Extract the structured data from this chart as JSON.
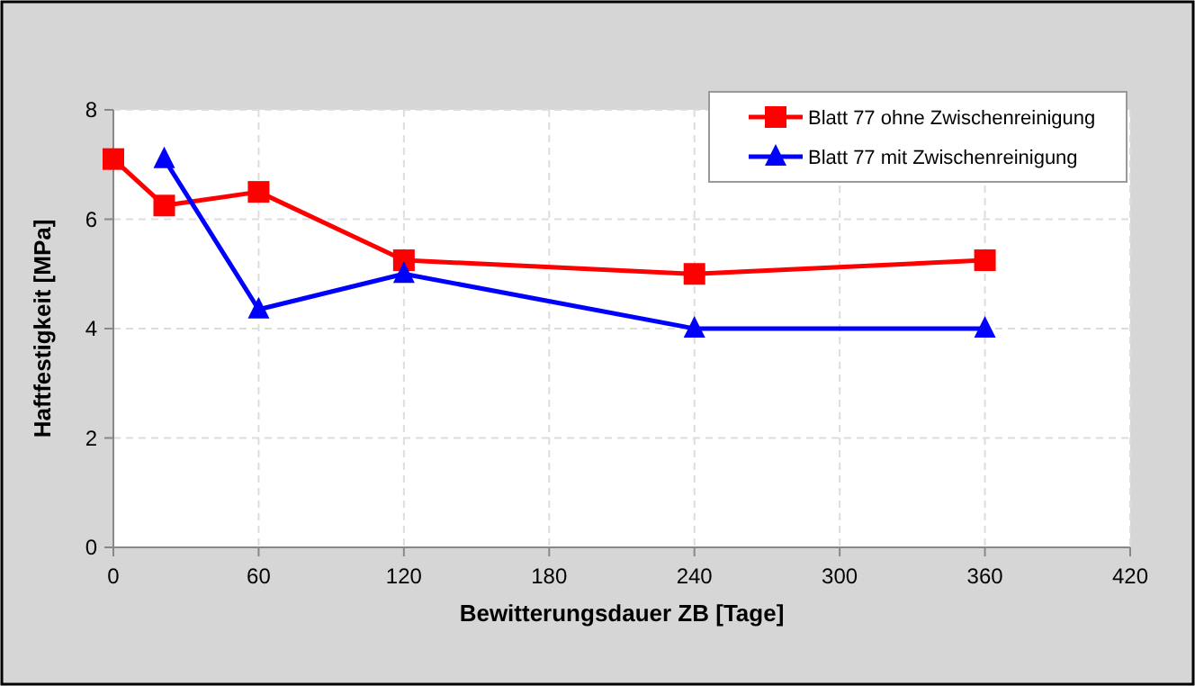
{
  "chart_data": {
    "type": "line",
    "xlabel": "Bewitterungsdauer ZB [Tage]",
    "ylabel": "Haftfestigkeit [MPa]",
    "xlim": [
      0,
      420
    ],
    "xticks": [
      0,
      60,
      120,
      180,
      240,
      300,
      360,
      420
    ],
    "ylim": [
      0,
      8
    ],
    "yticks": [
      0,
      2,
      4,
      6,
      8
    ],
    "grid": true,
    "legend": "top right",
    "line_style": "solid",
    "series": [
      {
        "name": "Blatt 77 ohne Zwischenreinigung",
        "color": "#ff0000",
        "marker": "square",
        "x": [
          0,
          21,
          60,
          120,
          240,
          360
        ],
        "values": [
          7.1,
          6.25,
          6.5,
          5.25,
          5.0,
          5.25
        ]
      },
      {
        "name": "Blatt 77 mit Zwischenreinigung",
        "color": "#0000ff",
        "marker": "triangle",
        "x": [
          21,
          60,
          120,
          240,
          360
        ],
        "values": [
          7.1,
          4.35,
          5.0,
          4.0,
          4.0
        ]
      }
    ]
  }
}
